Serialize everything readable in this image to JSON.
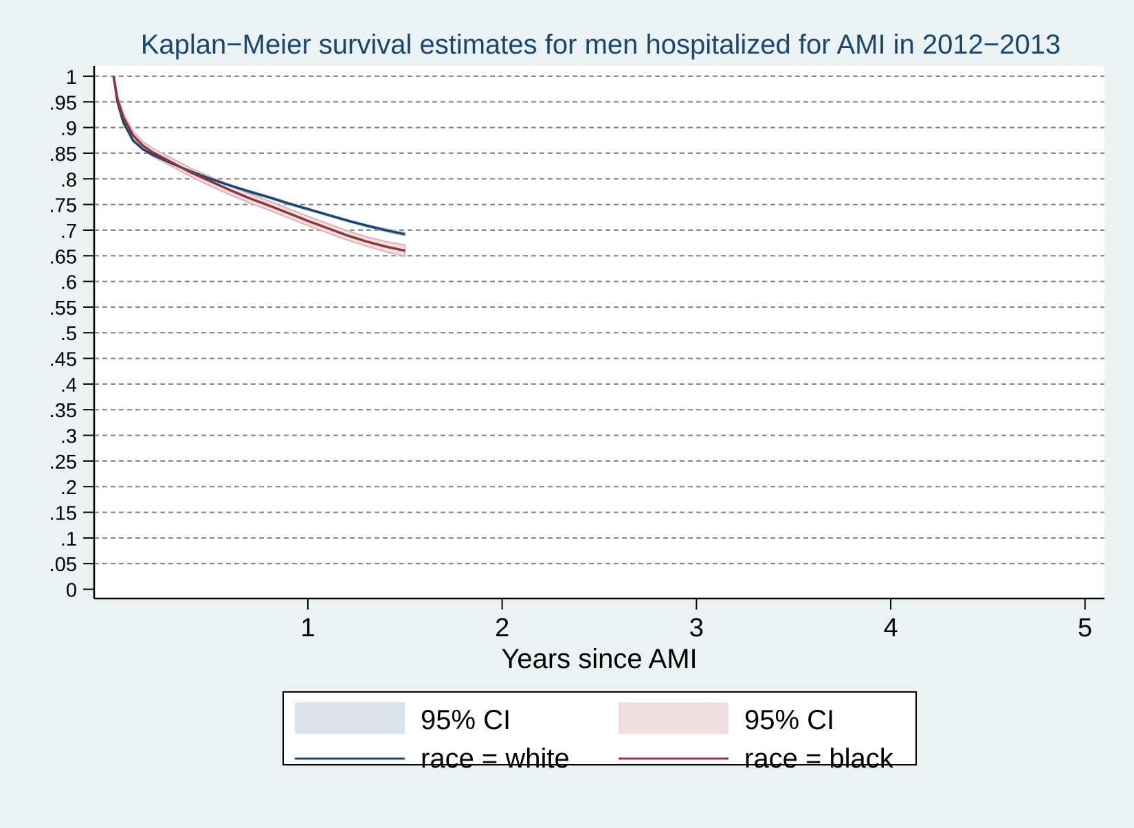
{
  "colors": {
    "background": "#eaf2f3",
    "plot_background": "#ffffff",
    "title": "#1a476f",
    "white_line": "#1a476f",
    "white_ci": "#dce3ea",
    "black_line": "#90353b",
    "black_ci": "#efdfe0",
    "black_ci_edge": "#d9b3b6",
    "grid": "#808080",
    "axis": "#000000"
  },
  "chart_data": {
    "type": "line",
    "title": "Kaplan−Meier survival estimates for men hospitalized for AMI in 2012−2013",
    "xlabel": "Years since AMI",
    "ylabel": "",
    "xlim": [
      -0.1,
      5.1
    ],
    "ylim": [
      -0.018,
      1.02
    ],
    "x_ticks": [
      1,
      2,
      3,
      4,
      5
    ],
    "x_tick_labels": [
      "1",
      "2",
      "3",
      "4",
      "5"
    ],
    "y_ticks": [
      0,
      0.05,
      0.1,
      0.15,
      0.2,
      0.25,
      0.3,
      0.35,
      0.4,
      0.45,
      0.5,
      0.55,
      0.6,
      0.65,
      0.7,
      0.75,
      0.8,
      0.85,
      0.9,
      0.95,
      1
    ],
    "y_tick_labels": [
      "0",
      ".05",
      ".1",
      ".15",
      ".2",
      ".25",
      ".3",
      ".35",
      ".4",
      ".45",
      ".5",
      ".55",
      ".6",
      ".65",
      ".7",
      ".75",
      ".8",
      ".85",
      ".9",
      ".95",
      "1"
    ],
    "grid": "horizontal dashed",
    "legend_position": "bottom",
    "series": [
      {
        "name": "race = white",
        "x": [
          0,
          0.02,
          0.05,
          0.1,
          0.15,
          0.2,
          0.3,
          0.4,
          0.5,
          0.6,
          0.7,
          0.8,
          0.9,
          1.0,
          1.1,
          1.2,
          1.3,
          1.4,
          1.5
        ],
        "y": [
          1.0,
          0.95,
          0.91,
          0.875,
          0.858,
          0.847,
          0.83,
          0.814,
          0.8,
          0.787,
          0.775,
          0.764,
          0.752,
          0.741,
          0.73,
          0.719,
          0.709,
          0.7,
          0.692
        ],
        "ci_lower": [
          1.0,
          0.948,
          0.908,
          0.873,
          0.856,
          0.845,
          0.828,
          0.812,
          0.798,
          0.785,
          0.773,
          0.762,
          0.75,
          0.739,
          0.728,
          0.717,
          0.707,
          0.697,
          0.689
        ],
        "ci_upper": [
          1.0,
          0.952,
          0.912,
          0.877,
          0.86,
          0.849,
          0.832,
          0.816,
          0.802,
          0.789,
          0.777,
          0.766,
          0.754,
          0.743,
          0.732,
          0.721,
          0.711,
          0.703,
          0.695
        ]
      },
      {
        "name": "race = black",
        "x": [
          0,
          0.02,
          0.05,
          0.1,
          0.15,
          0.2,
          0.3,
          0.4,
          0.5,
          0.6,
          0.7,
          0.8,
          0.9,
          1.0,
          1.1,
          1.2,
          1.3,
          1.4,
          1.5
        ],
        "y": [
          1.0,
          0.955,
          0.92,
          0.885,
          0.865,
          0.852,
          0.832,
          0.812,
          0.795,
          0.778,
          0.762,
          0.748,
          0.733,
          0.718,
          0.704,
          0.69,
          0.678,
          0.668,
          0.66
        ],
        "ci_lower": [
          1.0,
          0.948,
          0.912,
          0.877,
          0.857,
          0.844,
          0.824,
          0.804,
          0.786,
          0.769,
          0.753,
          0.739,
          0.724,
          0.709,
          0.695,
          0.681,
          0.669,
          0.658,
          0.649
        ],
        "ci_upper": [
          1.0,
          0.962,
          0.928,
          0.893,
          0.873,
          0.86,
          0.84,
          0.82,
          0.804,
          0.787,
          0.771,
          0.757,
          0.742,
          0.727,
          0.713,
          0.699,
          0.687,
          0.678,
          0.671
        ]
      }
    ],
    "legend": [
      {
        "label": "95% CI",
        "kind": "band",
        "series": "race = white"
      },
      {
        "label": "95% CI",
        "kind": "band",
        "series": "race = black"
      },
      {
        "label": "race = white",
        "kind": "line"
      },
      {
        "label": "race = black",
        "kind": "line"
      }
    ]
  }
}
